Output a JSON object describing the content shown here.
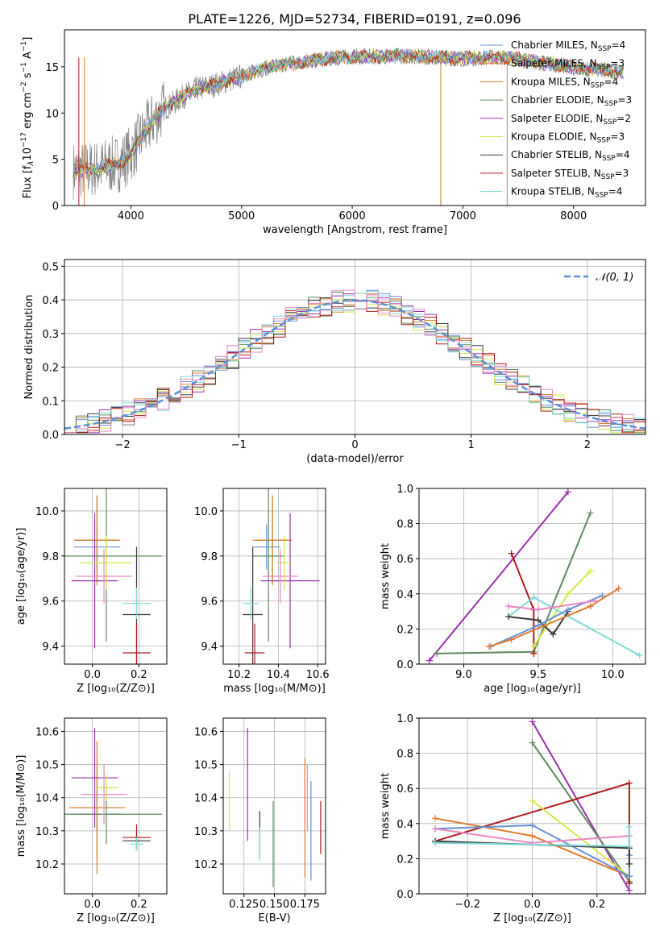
{
  "title": "PLATE=1226, MJD=52734, FIBERID=0191, z=0.096",
  "colors": {
    "Chabrier MILES": "#6a8fd8",
    "Salpeter MILES": "#e07b2e",
    "Kroupa MILES": "#c9812c",
    "Chabrier ELODIE": "#5f8a5f",
    "Salpeter ELODIE": "#9b30b0",
    "Kroupa ELODIE": "#d4e84a",
    "Chabrier STELIB": "#3c3c3c",
    "Salpeter STELIB": "#b01a1a",
    "Kroupa STELIB": "#7fd9d9",
    "extra_pink": "#e887c4",
    "gaussian": "#5b8fd6"
  },
  "chart_data": [
    {
      "id": "spectrum",
      "type": "line",
      "xlabel": "wavelength [Angstrom, rest frame]",
      "xlim": [
        3400,
        8650
      ],
      "ylim": [
        0,
        19
      ],
      "xticks": [
        "4000",
        "5000",
        "6000",
        "7000",
        "8000"
      ],
      "yticks": [
        "0",
        "5",
        "10",
        "15"
      ],
      "grid": false,
      "legend": "right",
      "legend_entries": [
        {
          "text": "Chabrier MILES, N",
          "sub": "SSP",
          "tail": "=4",
          "key": "Chabrier MILES"
        },
        {
          "text": "Salpeter MILES, N",
          "sub": "SSP",
          "tail": "=3",
          "key": "Salpeter MILES"
        },
        {
          "text": "Kroupa MILES, N",
          "sub": "SSP",
          "tail": "=4",
          "key": "Kroupa MILES"
        },
        {
          "text": "Chabrier ELODIE, N",
          "sub": "SSP",
          "tail": "=3",
          "key": "Chabrier ELODIE"
        },
        {
          "text": "Salpeter ELODIE, N",
          "sub": "SSP",
          "tail": "=2",
          "key": "Salpeter ELODIE"
        },
        {
          "text": "Kroupa ELODIE, N",
          "sub": "SSP",
          "tail": "=3",
          "key": "Kroupa ELODIE"
        },
        {
          "text": "Chabrier STELIB, N",
          "sub": "SSP",
          "tail": "=4",
          "key": "Chabrier STELIB"
        },
        {
          "text": "Salpeter STELIB, N",
          "sub": "SSP",
          "tail": "=3",
          "key": "Salpeter STELIB"
        },
        {
          "text": "Kroupa STELIB, N",
          "sub": "SSP",
          "tail": "=4",
          "key": "Kroupa STELIB"
        }
      ],
      "continuum": {
        "x": [
          3500,
          3600,
          3700,
          3800,
          3900,
          4000,
          4100,
          4200,
          4300,
          4400,
          4500,
          4600,
          4700,
          4800,
          4900,
          5000,
          5200,
          5400,
          5600,
          5800,
          6000,
          6200,
          6400,
          6600,
          6800,
          7000,
          7200,
          7400,
          7600,
          7800,
          8000,
          8200,
          8400
        ],
        "y": [
          3.8,
          3.9,
          4.0,
          4.3,
          4.6,
          5.6,
          7.5,
          9.2,
          10.5,
          11.2,
          12.0,
          12.6,
          12.9,
          13.2,
          13.6,
          14.0,
          14.8,
          15.3,
          15.6,
          15.9,
          16.1,
          16.1,
          16.2,
          16.1,
          16.0,
          15.9,
          16.0,
          16.0,
          15.6,
          15.3,
          14.9,
          14.7,
          14.5
        ]
      }
    },
    {
      "id": "residuals",
      "type": "bar",
      "xlabel": "(data-model)/error",
      "ylabel": "Normed distribution",
      "xlim": [
        -2.5,
        2.5
      ],
      "ylim": [
        0,
        0.52
      ],
      "xticks": [
        "−2",
        "−1",
        "0",
        "1",
        "2"
      ],
      "yticks": [
        "0.0",
        "0.1",
        "0.2",
        "0.3",
        "0.4",
        "0.5"
      ],
      "grid": true,
      "legend": "top-right",
      "gaussian_label": "𝒩(0, 1)",
      "bin_width": 0.1
    },
    {
      "id": "age_vs_Z",
      "type": "scatter",
      "xlabel": "Z [log₁₀(Z/Z⊙)]",
      "ylabel": "age  [log₁₀(age/yr)]",
      "xlim": [
        -0.12,
        0.32
      ],
      "ylim": [
        9.32,
        10.1
      ],
      "xticks": [
        "0.0",
        "0.2"
      ],
      "yticks": [
        "9.4",
        "9.6",
        "9.8",
        "10.0"
      ],
      "grid": true,
      "points": [
        {
          "key": "Chabrier MILES",
          "x": 0.02,
          "y": 9.84,
          "xerr": 0.1,
          "yerr": 0.1
        },
        {
          "key": "Salpeter MILES",
          "x": 0.02,
          "y": 9.87,
          "xerr": 0.1,
          "yerr": 0.2
        },
        {
          "key": "Kroupa MILES",
          "x": 0.02,
          "y": 9.87,
          "xerr": 0.09,
          "yerr": 0.19
        },
        {
          "key": "Chabrier ELODIE",
          "x": 0.06,
          "y": 9.8,
          "xerr": 0.24,
          "yerr": 0.38
        },
        {
          "key": "Salpeter ELODIE",
          "x": 0.01,
          "y": 9.69,
          "xerr": 0.1,
          "yerr": 0.3
        },
        {
          "key": "Kroupa ELODIE",
          "x": 0.06,
          "y": 9.77,
          "xerr": 0.11,
          "yerr": 0.12
        },
        {
          "key": "Chabrier STELIB",
          "x": 0.19,
          "y": 9.54,
          "xerr": 0.06,
          "yerr": 0.3
        },
        {
          "key": "Salpeter STELIB",
          "x": 0.19,
          "y": 9.37,
          "xerr": 0.06,
          "yerr": 0.13
        },
        {
          "key": "Kroupa STELIB",
          "x": 0.19,
          "y": 9.59,
          "xerr": 0.06,
          "yerr": 0.07
        },
        {
          "key": "extra_pink",
          "x": 0.05,
          "y": 9.71,
          "xerr": 0.12,
          "yerr": 0.12
        }
      ]
    },
    {
      "id": "age_vs_mass",
      "type": "scatter",
      "xlabel": "mass [log₁₀(M/M⊙)]",
      "xlim": [
        10.12,
        10.64
      ],
      "ylim": [
        9.32,
        10.1
      ],
      "xticks": [
        "10.2",
        "10.4",
        "10.6"
      ],
      "yticks": [
        "9.4",
        "9.6",
        "9.8",
        "10.0"
      ],
      "grid": true,
      "points": [
        {
          "key": "Chabrier MILES",
          "x": 10.34,
          "y": 9.84,
          "xerr": 0.07,
          "yerr": 0.1
        },
        {
          "key": "Salpeter MILES",
          "x": 10.37,
          "y": 9.87,
          "xerr": 0.1,
          "yerr": 0.2
        },
        {
          "key": "Kroupa MILES",
          "x": 10.37,
          "y": 9.87,
          "xerr": 0.08,
          "yerr": 0.19
        },
        {
          "key": "Chabrier ELODIE",
          "x": 10.35,
          "y": 9.8,
          "xerr": 0.08,
          "yerr": 0.38
        },
        {
          "key": "Salpeter ELODIE",
          "x": 10.46,
          "y": 9.69,
          "xerr": 0.15,
          "yerr": 0.3
        },
        {
          "key": "Kroupa ELODIE",
          "x": 10.43,
          "y": 9.77,
          "xerr": 0.04,
          "yerr": 0.12
        },
        {
          "key": "Chabrier STELIB",
          "x": 10.27,
          "y": 9.54,
          "xerr": 0.05,
          "yerr": 0.3
        },
        {
          "key": "Salpeter STELIB",
          "x": 10.28,
          "y": 9.37,
          "xerr": 0.05,
          "yerr": 0.13
        },
        {
          "key": "Kroupa STELIB",
          "x": 10.26,
          "y": 9.59,
          "xerr": 0.04,
          "yerr": 0.07
        },
        {
          "key": "extra_pink",
          "x": 10.41,
          "y": 9.71,
          "xerr": 0.09,
          "yerr": 0.12
        }
      ]
    },
    {
      "id": "weight_vs_age",
      "type": "line",
      "xlabel": "age  [log₁₀(age/yr)]",
      "ylabel": "mass weight",
      "xlim": [
        8.7,
        10.22
      ],
      "ylim": [
        0,
        1
      ],
      "xticks": [
        "9.0",
        "9.5",
        "10.0"
      ],
      "yticks": [
        "0.0",
        "0.2",
        "0.4",
        "0.6",
        "0.8",
        "1.0"
      ],
      "grid": true,
      "series": [
        {
          "key": "Salpeter ELODIE",
          "x": [
            8.77,
            9.7
          ],
          "y": [
            0.02,
            0.98
          ]
        },
        {
          "key": "Chabrier ELODIE",
          "x": [
            8.82,
            9.47,
            9.85
          ],
          "y": [
            0.06,
            0.07,
            0.86
          ]
        },
        {
          "key": "Salpeter STELIB",
          "x": [
            9.32,
            9.47,
            9.47
          ],
          "y": [
            0.63,
            0.31,
            0.06
          ]
        },
        {
          "key": "Kroupa ELODIE",
          "x": [
            9.47,
            9.7,
            9.85
          ],
          "y": [
            0.1,
            0.4,
            0.53
          ]
        },
        {
          "key": "Kroupa STELIB",
          "x": [
            9.3,
            9.47,
            10.18
          ],
          "y": [
            0.27,
            0.38,
            0.05
          ]
        },
        {
          "key": "Chabrier STELIB",
          "x": [
            9.3,
            9.5,
            9.6,
            9.7
          ],
          "y": [
            0.27,
            0.25,
            0.17,
            0.3
          ]
        },
        {
          "key": "Chabrier MILES",
          "x": [
            9.18,
            9.5,
            9.7,
            9.93
          ],
          "y": [
            0.1,
            0.22,
            0.31,
            0.39
          ]
        },
        {
          "key": "Salpeter MILES",
          "x": [
            9.17,
            9.32,
            9.85,
            10.04
          ],
          "y": [
            0.1,
            0.14,
            0.33,
            0.43
          ]
        },
        {
          "key": "extra_pink",
          "x": [
            9.3,
            9.5,
            9.88
          ],
          "y": [
            0.33,
            0.31,
            0.36
          ]
        }
      ]
    },
    {
      "id": "mass_vs_Z",
      "type": "scatter",
      "xlabel": "Z [log₁₀(Z/Z⊙)]",
      "ylabel": "mass [log₁₀(M/M⊙)]",
      "xlim": [
        -0.12,
        0.32
      ],
      "ylim": [
        10.11,
        10.64
      ],
      "xticks": [
        "0.0",
        "0.2"
      ],
      "yticks": [
        "10.2",
        "10.3",
        "10.4",
        "10.5",
        "10.6"
      ],
      "grid": true,
      "points": [
        {
          "key": "Chabrier MILES",
          "x": 0.02,
          "y": 10.35,
          "xerr": 0.1,
          "yerr": 0.07
        },
        {
          "key": "Salpeter MILES",
          "x": 0.02,
          "y": 10.37,
          "xerr": 0.12,
          "yerr": 0.2
        },
        {
          "key": "Kroupa MILES",
          "x": 0.02,
          "y": 10.37,
          "xerr": 0.09,
          "yerr": 0.15
        },
        {
          "key": "Chabrier ELODIE",
          "x": 0.06,
          "y": 10.35,
          "xerr": 0.24,
          "yerr": 0.09
        },
        {
          "key": "Salpeter ELODIE",
          "x": 0.01,
          "y": 10.46,
          "xerr": 0.1,
          "yerr": 0.15
        },
        {
          "key": "Kroupa ELODIE",
          "x": 0.06,
          "y": 10.43,
          "xerr": 0.05,
          "yerr": 0.04
        },
        {
          "key": "Chabrier STELIB",
          "x": 0.19,
          "y": 10.27,
          "xerr": 0.06,
          "yerr": 0.03
        },
        {
          "key": "Salpeter STELIB",
          "x": 0.19,
          "y": 10.28,
          "xerr": 0.06,
          "yerr": 0.04
        },
        {
          "key": "Kroupa STELIB",
          "x": 0.19,
          "y": 10.26,
          "xerr": 0.03,
          "yerr": 0.02
        },
        {
          "key": "extra_pink",
          "x": 0.05,
          "y": 10.41,
          "xerr": 0.1,
          "yerr": 0.09
        }
      ]
    },
    {
      "id": "mass_vs_EBV",
      "type": "scatter",
      "xlabel": "E(B-V)",
      "xlim": [
        0.108,
        0.192
      ],
      "ylim": [
        10.11,
        10.64
      ],
      "xticks": [
        "0.125",
        "0.150",
        "0.175"
      ],
      "yticks": [
        "10.2",
        "10.3",
        "10.4",
        "10.5",
        "10.6"
      ],
      "grid": true,
      "points": [
        {
          "key": "Kroupa ELODIE",
          "x": 0.113,
          "y": 10.39,
          "yerr": 0.09
        },
        {
          "key": "Salpeter ELODIE",
          "x": 0.128,
          "y": 10.44,
          "yerr": 0.17
        },
        {
          "key": "Chabrier STELIB",
          "x": 0.138,
          "y": 10.29,
          "yerr": 0.07
        },
        {
          "key": "Kroupa STELIB",
          "x": 0.138,
          "y": 10.26,
          "yerr": 0.05
        },
        {
          "key": "Chabrier ELODIE",
          "x": 0.149,
          "y": 10.26,
          "yerr": 0.13
        },
        {
          "key": "Salpeter MILES",
          "x": 0.175,
          "y": 10.34,
          "yerr": 0.18
        },
        {
          "key": "extra_pink",
          "x": 0.177,
          "y": 10.4,
          "yerr": 0.1
        },
        {
          "key": "Chabrier MILES",
          "x": 0.18,
          "y": 10.3,
          "yerr": 0.15
        },
        {
          "key": "Salpeter STELIB",
          "x": 0.188,
          "y": 10.31,
          "yerr": 0.08
        }
      ]
    },
    {
      "id": "weight_vs_Z",
      "type": "line",
      "xlabel": "Z [log₁₀(Z/Z⊙)]",
      "ylabel": "mass weight",
      "xlim": [
        -0.35,
        0.35
      ],
      "ylim": [
        0,
        1
      ],
      "xticks": [
        "−0.2",
        "0.0",
        "0.2"
      ],
      "yticks": [
        "0.0",
        "0.2",
        "0.4",
        "0.6",
        "0.8",
        "1.0"
      ],
      "grid": true,
      "series": [
        {
          "key": "Salpeter ELODIE",
          "x": [
            0.0,
            0.3
          ],
          "y": [
            0.98,
            0.02
          ]
        },
        {
          "key": "Chabrier ELODIE",
          "x": [
            0.0,
            0.3,
            0.3
          ],
          "y": [
            0.86,
            0.07,
            0.06
          ]
        },
        {
          "key": "Salpeter STELIB",
          "x": [
            -0.3,
            0.3,
            0.3
          ],
          "y": [
            0.3,
            0.63,
            0.06
          ]
        },
        {
          "key": "Kroupa ELODIE",
          "x": [
            0.0,
            0.3
          ],
          "y": [
            0.53,
            0.1
          ]
        },
        {
          "key": "Salpeter MILES",
          "x": [
            -0.3,
            0.0,
            0.3
          ],
          "y": [
            0.43,
            0.33,
            0.1
          ]
        },
        {
          "key": "Chabrier MILES",
          "x": [
            -0.3,
            0.0,
            0.3,
            0.3
          ],
          "y": [
            0.37,
            0.39,
            0.1,
            0.22
          ]
        },
        {
          "key": "extra_pink",
          "x": [
            -0.3,
            0.0,
            0.3
          ],
          "y": [
            0.37,
            0.29,
            0.33
          ]
        },
        {
          "key": "Chabrier STELIB",
          "x": [
            -0.3,
            0.3,
            0.3
          ],
          "y": [
            0.3,
            0.26,
            0.17
          ]
        },
        {
          "key": "Kroupa STELIB",
          "x": [
            -0.3,
            0.3,
            0.3
          ],
          "y": [
            0.29,
            0.27,
            0.38
          ]
        }
      ]
    }
  ]
}
